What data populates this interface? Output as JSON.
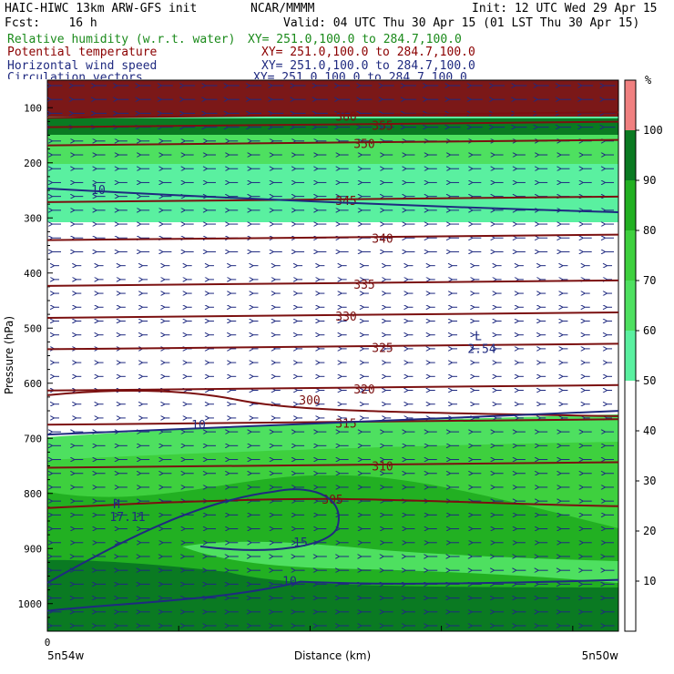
{
  "header": {
    "model": "HAIC-HIWC 13km ARW-GFS init",
    "center": "NCAR/MMMM",
    "init": "Init: 12 UTC Wed 29 Apr 15",
    "fcst": "Fcst:    16 h",
    "valid": "Valid: 04 UTC Thu 30 Apr 15 (01 LST Thu 30 Apr 15)",
    "fields": [
      {
        "name": "Relative humidity (w.r.t. water)",
        "xy": "XY= 251.0,100.0 to 284.7,100.0",
        "color": "#1a8a1a"
      },
      {
        "name": "Potential temperature",
        "xy": "XY= 251.0,100.0 to 284.7,100.0",
        "color": "#8b0000"
      },
      {
        "name": "Horizontal wind speed",
        "xy": "XY= 251.0,100.0 to 284.7,100.0",
        "color": "#1f2a80"
      },
      {
        "name": "Circulation vectors",
        "xy": "XY= 251.0,100.0 to 284.7,100.0",
        "color": "#1f2a80"
      }
    ]
  },
  "chart_data": {
    "type": "heatmap",
    "ylabel": "Pressure (hPa)",
    "xlabel": "Distance (km)",
    "y_ticks": [
      100,
      200,
      300,
      400,
      500,
      600,
      700,
      800,
      900,
      1000
    ],
    "ylim": [
      50,
      1050
    ],
    "x_tick_label": "0",
    "x_left_label": "5n54w",
    "x_right_label": "5n50w",
    "colorbar": {
      "unit": "%",
      "ticks": [
        10,
        20,
        30,
        40,
        50,
        60,
        70,
        80,
        90,
        100
      ],
      "bands": [
        {
          "from": 50,
          "to": 60,
          "color": "#5af0a0"
        },
        {
          "from": 60,
          "to": 70,
          "color": "#4ee060"
        },
        {
          "from": 70,
          "to": 80,
          "color": "#3ed03e"
        },
        {
          "from": 80,
          "to": 90,
          "color": "#22b022"
        },
        {
          "from": 90,
          "to": 100,
          "color": "#0a7a22"
        },
        {
          "from": 100,
          "to": 110,
          "color": "#f08080"
        }
      ]
    },
    "theta_contours": [
      {
        "label": "300",
        "p": 630
      },
      {
        "label": "305",
        "p": 810
      },
      {
        "label": "310",
        "p": 750
      },
      {
        "label": "315",
        "p": 672
      },
      {
        "label": "320",
        "p": 610
      },
      {
        "label": "325",
        "p": 535
      },
      {
        "label": "330",
        "p": 478
      },
      {
        "label": "335",
        "p": 420
      },
      {
        "label": "340",
        "p": 337
      },
      {
        "label": "345",
        "p": 268
      },
      {
        "label": "350",
        "p": 165
      },
      {
        "label": "355",
        "p": 132
      },
      {
        "label": "360",
        "p": 115
      }
    ],
    "wind_contours": [
      {
        "label": "10",
        "p": 260
      },
      {
        "label": "10",
        "p": 680
      },
      {
        "label": "15",
        "p": 830
      },
      {
        "label": "10",
        "p": 980
      }
    ],
    "extrema": [
      {
        "type": "H",
        "value": "17.11",
        "p": 840
      },
      {
        "type": "L",
        "value": "2.54",
        "p": 535
      }
    ]
  }
}
